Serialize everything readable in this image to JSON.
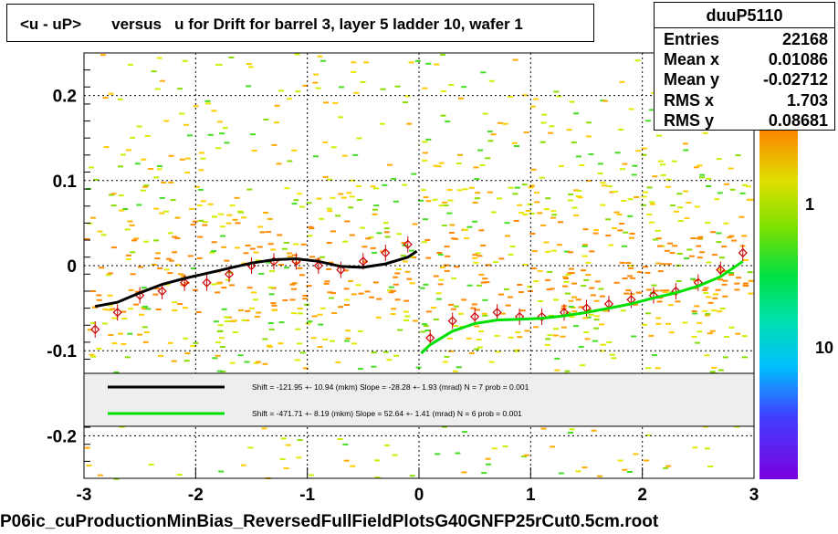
{
  "title": "<u - uP>       versus   u for Drift for barrel 3, layer 5 ladder 10, wafer 1",
  "stats": {
    "name": "duuP5110",
    "rows": [
      {
        "label": "Entries",
        "value": "22168"
      },
      {
        "label": "Mean x",
        "value": "0.01086"
      },
      {
        "label": "Mean y",
        "value": "-0.02712"
      },
      {
        "label": "RMS x",
        "value": "1.703"
      },
      {
        "label": "RMS y",
        "value": "0.08681"
      }
    ]
  },
  "footer": "P06ic_cuProductionMinBias_ReversedFullFieldPlotsG40GNFP25rCut0.5cm.root",
  "colorbar": {
    "labels": [
      "1",
      "10"
    ],
    "partial_label": "0"
  },
  "legend": {
    "entries": [
      {
        "color": "#000000",
        "text": "Shift =  -121.95 +- 10.94 (mkm) Slope =   -28.28 +- 1.93 (mrad)  N = 7 prob = 0.001"
      },
      {
        "color": "#00e000",
        "text": "Shift =  -471.71 +- 8.19 (mkm) Slope =    52.64 +- 1.41 (mrad)  N = 6 prob = 0.001"
      }
    ]
  },
  "chart_data": {
    "type": "scatter",
    "title": "<u - uP>       versus   u for Drift for barrel 3, layer 5 ladder 10, wafer 1",
    "xlim": [
      -3,
      3
    ],
    "ylim": [
      -0.25,
      0.25
    ],
    "xticks": [
      "-3",
      "-2",
      "-1",
      "0",
      "1",
      "2",
      "3"
    ],
    "yticks": [
      "-0.2",
      "-0.1",
      "0",
      "0.1",
      "0.2"
    ],
    "grid": "dashed",
    "series": [
      {
        "name": "profile",
        "color": "#cc0000",
        "x": [
          -2.9,
          -2.7,
          -2.5,
          -2.3,
          -2.1,
          -1.9,
          -1.7,
          -1.5,
          -1.3,
          -1.1,
          -0.9,
          -0.7,
          -0.5,
          -0.3,
          -0.1,
          0.1,
          0.3,
          0.5,
          0.7,
          0.9,
          1.1,
          1.3,
          1.5,
          1.7,
          1.9,
          2.1,
          2.3,
          2.5,
          2.7,
          2.9
        ],
        "y": [
          -0.075,
          -0.055,
          -0.035,
          -0.03,
          -0.02,
          -0.02,
          -0.01,
          0.0,
          0.005,
          0.005,
          0.0,
          -0.005,
          0.005,
          0.015,
          0.025,
          -0.085,
          -0.065,
          -0.06,
          -0.055,
          -0.06,
          -0.06,
          -0.055,
          -0.05,
          -0.045,
          -0.04,
          -0.035,
          -0.03,
          -0.02,
          -0.005,
          0.015
        ]
      },
      {
        "name": "fit-left",
        "color": "#000000",
        "x": [
          -2.9,
          -2.7,
          -2.5,
          -2.3,
          -2.1,
          -1.9,
          -1.7,
          -1.5,
          -1.3,
          -1.1,
          -0.9,
          -0.7,
          -0.5,
          -0.3,
          -0.1,
          -0.02
        ],
        "y": [
          -0.048,
          -0.043,
          -0.032,
          -0.022,
          -0.015,
          -0.009,
          -0.003,
          0.003,
          0.007,
          0.008,
          0.005,
          -0.001,
          -0.002,
          0.002,
          0.01,
          0.017
        ]
      },
      {
        "name": "fit-right",
        "color": "#00e000",
        "x": [
          0.02,
          0.1,
          0.3,
          0.5,
          0.7,
          0.9,
          1.1,
          1.3,
          1.5,
          1.7,
          1.9,
          2.1,
          2.3,
          2.5,
          2.7,
          2.9
        ],
        "y": [
          -0.103,
          -0.093,
          -0.077,
          -0.068,
          -0.064,
          -0.063,
          -0.062,
          -0.059,
          -0.055,
          -0.05,
          -0.045,
          -0.038,
          -0.032,
          -0.024,
          -0.013,
          0.005
        ]
      }
    ]
  }
}
